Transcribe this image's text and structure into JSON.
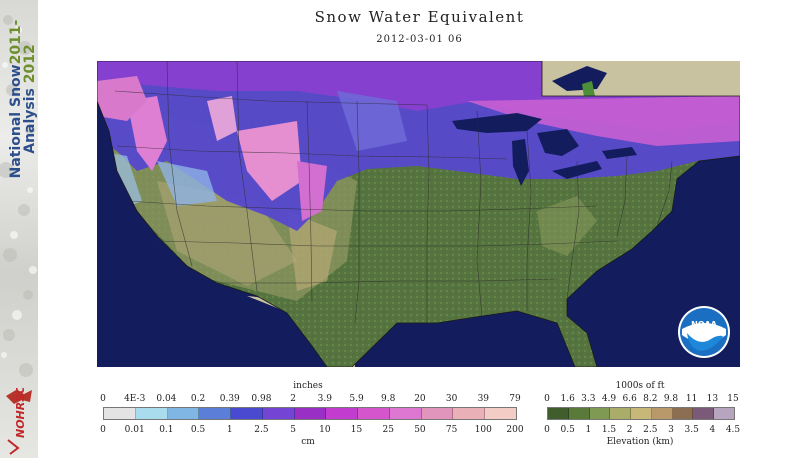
{
  "banner": {
    "title_line1": "National Snow",
    "title_line1_year": "2011-",
    "title_line2": "Analysis",
    "title_line2_year": "2012",
    "logo_text": "NOHRSC"
  },
  "title": "Snow Water Equivalent",
  "subtitle": "2012-03-01 06",
  "noaa_label": "NOAA",
  "snow_legend": {
    "title_top": "inches",
    "title_bottom": "cm",
    "inch_ticks": [
      "0",
      "4E-3",
      "0.04",
      "0.2",
      "0.39",
      "0.98",
      "2",
      "3.9",
      "5.9",
      "9.8",
      "20",
      "30",
      "39",
      "79"
    ],
    "cm_ticks": [
      "0",
      "0.01",
      "0.1",
      "0.5",
      "1",
      "2.5",
      "5",
      "10",
      "15",
      "25",
      "50",
      "75",
      "100",
      "200"
    ],
    "colors": [
      "#e4e4e4",
      "#a9dcec",
      "#7fb6e3",
      "#5b7fd8",
      "#4a4ad0",
      "#7444d4",
      "#9a2fc6",
      "#c23cd0",
      "#d455cc",
      "#dd77d2",
      "#e195bc",
      "#eab0b8",
      "#f3ccc6"
    ]
  },
  "elev_legend": {
    "title_top": "1000s of ft",
    "title_bottom": "Elevation (km)",
    "ft_ticks": [
      "0",
      "1.6",
      "3.3",
      "4.9",
      "6.6",
      "8.2",
      "9.8",
      "11",
      "13",
      "15"
    ],
    "km_ticks": [
      "0",
      "0.5",
      "1",
      "1.5",
      "2",
      "2.5",
      "3",
      "3.5",
      "4",
      "4.5"
    ],
    "colors": [
      "#3f5e2c",
      "#5a7a3a",
      "#7f9a52",
      "#a9ad68",
      "#c7b877",
      "#b9996a",
      "#8c6e52",
      "#7a5a78",
      "#b7a4bf"
    ]
  }
}
